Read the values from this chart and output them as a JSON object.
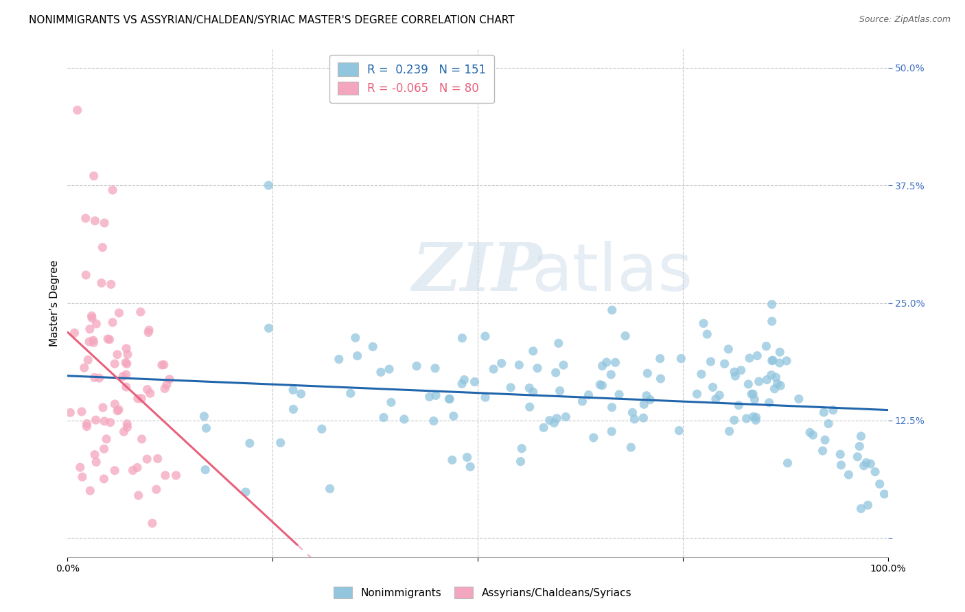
{
  "title": "NONIMMIGRANTS VS ASSYRIAN/CHALDEAN/SYRIAC MASTER'S DEGREE CORRELATION CHART",
  "source": "Source: ZipAtlas.com",
  "ylabel": "Master’s Degree",
  "xlim": [
    0.0,
    1.0
  ],
  "ylim": [
    -0.02,
    0.52
  ],
  "yticks": [
    0.0,
    0.125,
    0.25,
    0.375,
    0.5
  ],
  "ytick_labels": [
    "",
    "12.5%",
    "25.0%",
    "37.5%",
    "50.0%"
  ],
  "xticks": [
    0.0,
    0.25,
    0.5,
    0.75,
    1.0
  ],
  "xtick_labels": [
    "0.0%",
    "",
    "",
    "",
    "100.0%"
  ],
  "blue_color": "#92c5de",
  "pink_color": "#f4a6be",
  "blue_line_color": "#2166ac",
  "pink_line_color": "#e8607a",
  "pink_dashed_color": "#f4a6be",
  "legend_blue_R": "0.239",
  "legend_blue_N": "151",
  "legend_pink_R": "-0.065",
  "legend_pink_N": "80",
  "background_color": "#ffffff",
  "grid_color": "#c8c8c8",
  "title_fontsize": 11,
  "axis_label_fontsize": 11,
  "tick_fontsize": 10,
  "tick_color_right": "#4472c4"
}
